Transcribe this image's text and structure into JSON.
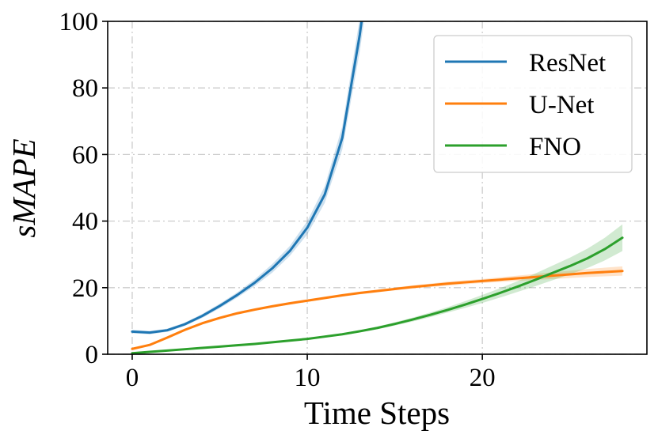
{
  "chart_data": {
    "type": "line",
    "title": "",
    "xlabel": "Time Steps",
    "ylabel": "sMAPE",
    "xlim": [
      -1.4,
      29.4
    ],
    "ylim": [
      0,
      100
    ],
    "xticks": [
      0,
      10,
      20
    ],
    "yticks": [
      0,
      20,
      40,
      60,
      80,
      100
    ],
    "grid": true,
    "legend_position": "top-right",
    "series": [
      {
        "name": "ResNet",
        "color": "#1f77b4",
        "x": [
          0,
          1,
          2,
          3,
          4,
          5,
          6,
          7,
          8,
          9,
          10,
          11,
          12,
          13,
          14
        ],
        "values": [
          6.8,
          6.5,
          7.2,
          9.0,
          11.5,
          14.5,
          17.8,
          21.5,
          25.8,
          31.0,
          38.0,
          48.0,
          65.0,
          96.0,
          135.0
        ],
        "lower": [
          6.3,
          6.0,
          6.7,
          8.5,
          10.9,
          13.8,
          17.0,
          20.5,
          24.5,
          29.5,
          36.0,
          45.5,
          61.5,
          91.0,
          128.0
        ],
        "upper": [
          7.3,
          7.0,
          7.7,
          9.5,
          12.1,
          15.2,
          18.6,
          22.5,
          27.1,
          32.5,
          40.0,
          50.5,
          68.5,
          101.0,
          142.0
        ]
      },
      {
        "name": "U-Net",
        "color": "#ff7f0e",
        "x": [
          0,
          1,
          2,
          3,
          4,
          5,
          6,
          7,
          8,
          9,
          10,
          11,
          12,
          13,
          14,
          15,
          16,
          17,
          18,
          19,
          20,
          21,
          22,
          23,
          24,
          25,
          26,
          27,
          28
        ],
        "values": [
          1.6,
          2.8,
          5.0,
          7.3,
          9.3,
          10.9,
          12.3,
          13.4,
          14.4,
          15.3,
          16.1,
          16.9,
          17.7,
          18.4,
          19.0,
          19.6,
          20.2,
          20.7,
          21.2,
          21.6,
          22.0,
          22.4,
          22.8,
          23.2,
          23.6,
          24.0,
          24.4,
          24.7,
          25.0
        ],
        "lower": [
          1.3,
          2.5,
          4.6,
          6.9,
          8.9,
          10.5,
          11.9,
          13.0,
          14.0,
          14.9,
          15.7,
          16.5,
          17.3,
          18.0,
          18.6,
          19.2,
          19.7,
          20.2,
          20.6,
          21.0,
          21.4,
          21.7,
          22.0,
          22.3,
          22.6,
          22.9,
          23.2,
          23.4,
          23.6
        ],
        "upper": [
          1.9,
          3.1,
          5.4,
          7.7,
          9.7,
          11.3,
          12.7,
          13.8,
          14.8,
          15.7,
          16.5,
          17.3,
          18.1,
          18.8,
          19.4,
          20.0,
          20.7,
          21.2,
          21.8,
          22.2,
          22.6,
          23.1,
          23.6,
          24.1,
          24.6,
          25.1,
          25.6,
          26.0,
          26.4
        ]
      },
      {
        "name": "FNO",
        "color": "#2ca02c",
        "x": [
          0,
          1,
          2,
          3,
          4,
          5,
          6,
          7,
          8,
          9,
          10,
          11,
          12,
          13,
          14,
          15,
          16,
          17,
          18,
          19,
          20,
          21,
          22,
          23,
          24,
          25,
          26,
          27,
          28
        ],
        "values": [
          0.3,
          0.7,
          1.1,
          1.5,
          1.9,
          2.3,
          2.7,
          3.1,
          3.6,
          4.1,
          4.6,
          5.3,
          6.0,
          6.9,
          7.9,
          9.1,
          10.4,
          11.8,
          13.3,
          14.9,
          16.6,
          18.4,
          20.3,
          22.3,
          24.4,
          26.5,
          28.8,
          31.6,
          35.0
        ],
        "lower": [
          0.2,
          0.6,
          1.0,
          1.4,
          1.8,
          2.2,
          2.6,
          3.0,
          3.4,
          3.9,
          4.4,
          5.0,
          5.7,
          6.5,
          7.5,
          8.6,
          9.8,
          11.1,
          12.5,
          13.9,
          15.4,
          17.0,
          18.7,
          20.4,
          22.2,
          24.0,
          25.9,
          28.2,
          31.0
        ],
        "upper": [
          0.4,
          0.8,
          1.2,
          1.6,
          2.0,
          2.4,
          2.8,
          3.2,
          3.8,
          4.3,
          4.8,
          5.6,
          6.3,
          7.3,
          8.3,
          9.6,
          11.0,
          12.5,
          14.1,
          15.9,
          17.8,
          19.8,
          21.9,
          24.2,
          26.6,
          29.0,
          31.7,
          35.0,
          39.0
        ]
      }
    ]
  }
}
